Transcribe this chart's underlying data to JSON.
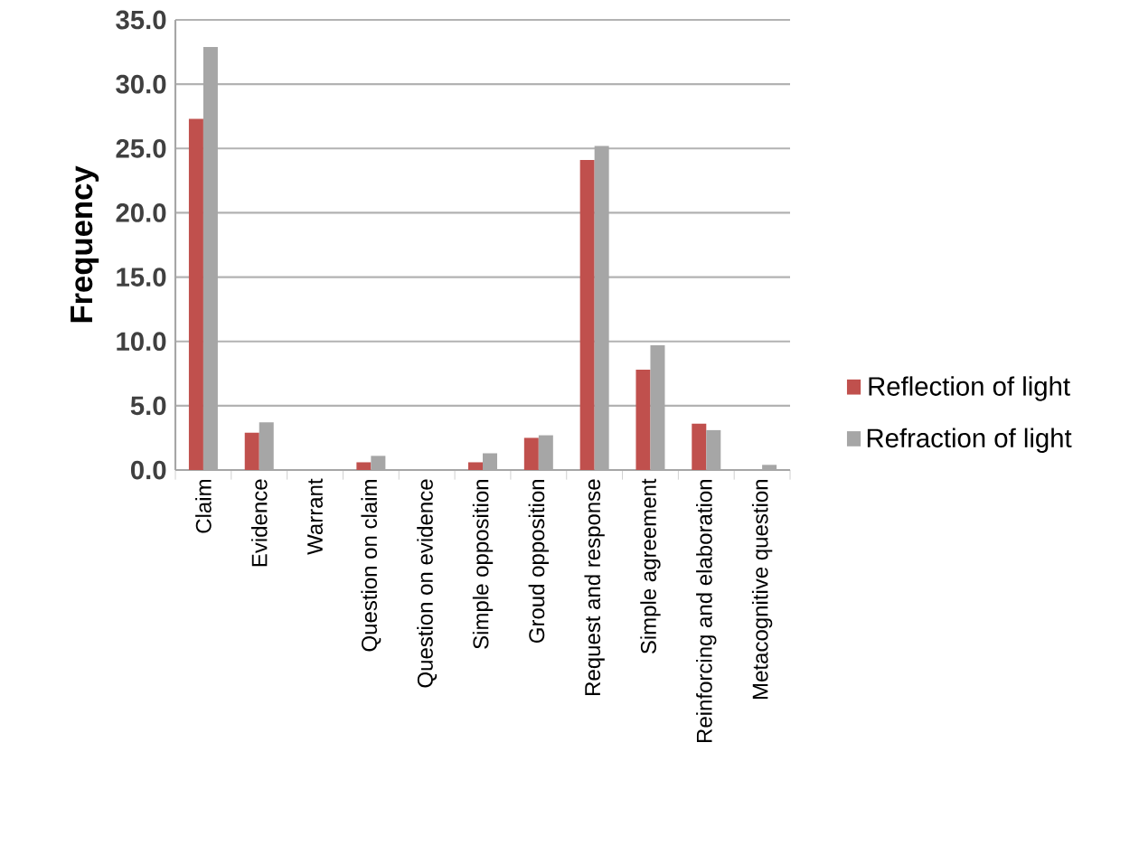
{
  "chart_data": {
    "type": "bar",
    "ylabel": "Frequency",
    "categories": [
      "Claim",
      "Evidence",
      "Warrant",
      "Question on claim",
      "Question on evidence",
      "Simple opposition",
      "Groud opposition",
      "Request and response",
      "Simple agreement",
      "Reinforcing and elaboration",
      "Metacognitive question"
    ],
    "series": [
      {
        "name": "Reflection of light",
        "color": "#c0504d",
        "values": [
          27.3,
          2.9,
          0,
          0.6,
          0,
          0.6,
          2.5,
          24.1,
          7.8,
          3.6,
          0
        ]
      },
      {
        "name": "Refraction of light",
        "color": "#a6a6a6",
        "values": [
          32.9,
          3.7,
          0,
          1.1,
          0,
          1.3,
          2.7,
          25.2,
          9.7,
          3.1,
          0.4
        ]
      }
    ],
    "ylim": [
      0,
      35
    ],
    "yticks": [
      {
        "value": 0,
        "label": "0.0"
      },
      {
        "value": 5,
        "label": "5.0"
      },
      {
        "value": 10,
        "label": "10.0"
      },
      {
        "value": 15,
        "label": "15.0"
      },
      {
        "value": 20,
        "label": "20.0"
      },
      {
        "value": 25,
        "label": "25.0"
      },
      {
        "value": 30,
        "label": "30.0"
      },
      {
        "value": 35,
        "label": "35.0"
      }
    ],
    "grid": "y",
    "legend": "right"
  }
}
